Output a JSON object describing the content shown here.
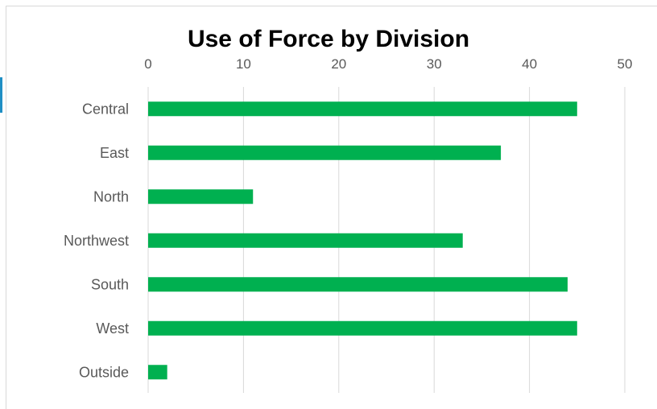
{
  "chart_data": {
    "type": "bar",
    "orientation": "horizontal",
    "title": "Use of Force by Division",
    "categories": [
      "Central",
      "East",
      "North",
      "Northwest",
      "South",
      "West",
      "Outside"
    ],
    "values": [
      45,
      37,
      11,
      33,
      44,
      45,
      2
    ],
    "xlim": [
      0,
      50
    ],
    "xticks": [
      "0",
      "10",
      "20",
      "30",
      "40",
      "50"
    ],
    "x_axis_position": "top",
    "grid": true,
    "legend": "none",
    "bar_color": "#00b050",
    "grid_color": "#d9d9d9",
    "tick_color": "#595959"
  }
}
